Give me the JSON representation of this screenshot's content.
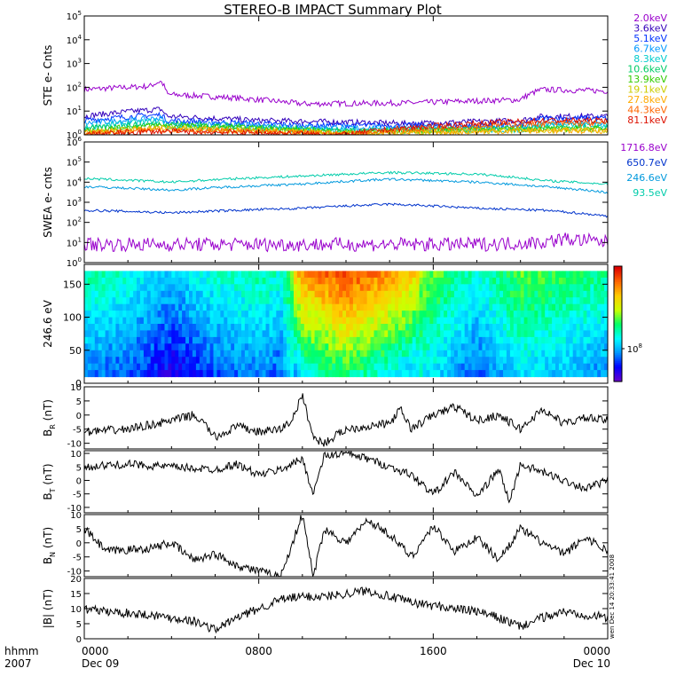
{
  "title": "STEREO-B IMPACT Summary Plot",
  "stamp": "wen Dec 14 20:33:41 2008",
  "time_axis": {
    "row_labels": [
      "hhmm",
      "2007"
    ],
    "ticks": [
      {
        "hhmm": "0000",
        "date": "Dec 09",
        "hour": 0
      },
      {
        "hhmm": "0800",
        "date": "",
        "hour": 8
      },
      {
        "hhmm": "1600",
        "date": "",
        "hour": 16
      },
      {
        "hhmm": "0000",
        "date": "Dec 10",
        "hour": 24
      }
    ]
  },
  "chart_data": [
    {
      "type": "line",
      "id": "ste",
      "ylabel": "STE e- Cnts",
      "yscale": "log",
      "ylim": [
        1,
        100000
      ],
      "yticks": [
        "10^0",
        "10^1",
        "10^2",
        "10^3",
        "10^4",
        "10^5"
      ],
      "xlim_hours": [
        0,
        24
      ],
      "legend_position": "right",
      "series": [
        {
          "name": "2.0keV",
          "color": "#9900CC",
          "values": [
            [
              0,
              80
            ],
            [
              3,
              110
            ],
            [
              3.5,
              180
            ],
            [
              3.8,
              50
            ],
            [
              6,
              40
            ],
            [
              10,
              20
            ],
            [
              15,
              22
            ],
            [
              20,
              30
            ],
            [
              21,
              80
            ],
            [
              24,
              70
            ]
          ]
        },
        {
          "name": "3.6keV",
          "color": "#3300BB",
          "values": [
            [
              0,
              6
            ],
            [
              3.5,
              12
            ],
            [
              3.8,
              6
            ],
            [
              8,
              4
            ],
            [
              15,
              3
            ],
            [
              20,
              4
            ],
            [
              21,
              6
            ],
            [
              24,
              6
            ]
          ]
        },
        {
          "name": "5.1keV",
          "color": "#0033FF",
          "values": [
            [
              0,
              4
            ],
            [
              3.5,
              7
            ],
            [
              3.8,
              4
            ],
            [
              10,
              2.5
            ],
            [
              20,
              2.5
            ],
            [
              21,
              5
            ],
            [
              24,
              5
            ]
          ]
        },
        {
          "name": "6.7keV",
          "color": "#0099FF",
          "values": [
            [
              0,
              3
            ],
            [
              3.5,
              5
            ],
            [
              3.8,
              3
            ],
            [
              12,
              2
            ],
            [
              20,
              2
            ],
            [
              21,
              3
            ],
            [
              24,
              3
            ]
          ]
        },
        {
          "name": "8.3keV",
          "color": "#00CCCC",
          "values": [
            [
              0,
              2
            ],
            [
              3.5,
              4
            ],
            [
              3.8,
              2
            ],
            [
              12,
              1.6
            ],
            [
              20,
              1.6
            ],
            [
              21,
              2.5
            ],
            [
              24,
              2.5
            ]
          ]
        },
        {
          "name": "10.6keV",
          "color": "#00CC66",
          "values": [
            [
              0,
              1.8
            ],
            [
              3.5,
              3
            ],
            [
              12,
              1.4
            ],
            [
              21,
              2
            ],
            [
              24,
              2
            ]
          ]
        },
        {
          "name": "13.9keV",
          "color": "#33CC00",
          "values": [
            [
              0,
              1.5
            ],
            [
              3.5,
              2.5
            ],
            [
              12,
              1.3
            ],
            [
              21,
              1.8
            ],
            [
              24,
              1.8
            ]
          ]
        },
        {
          "name": "19.1keV",
          "color": "#CCCC00",
          "values": [
            [
              0,
              1.3
            ],
            [
              3.5,
              2
            ],
            [
              12,
              1.2
            ],
            [
              21,
              1.6
            ],
            [
              24,
              1.6
            ]
          ]
        },
        {
          "name": "27.8keV",
          "color": "#FFAA00",
          "values": [
            [
              0,
              1.2
            ],
            [
              3.5,
              1.8
            ],
            [
              12,
              1.1
            ],
            [
              21,
              1.5
            ],
            [
              24,
              1.5
            ]
          ]
        },
        {
          "name": "44.3keV",
          "color": "#FF6600",
          "values": [
            [
              0,
              1.1
            ],
            [
              3.5,
              1.6
            ],
            [
              12,
              1.05
            ],
            [
              21,
              3
            ],
            [
              24,
              3
            ]
          ]
        },
        {
          "name": "81.1keV",
          "color": "#DD1100",
          "values": [
            [
              0,
              1.05
            ],
            [
              3.5,
              1.4
            ],
            [
              12,
              1.02
            ],
            [
              21,
              4
            ],
            [
              24,
              4
            ]
          ]
        }
      ]
    },
    {
      "type": "line",
      "id": "swea",
      "ylabel": "SWEA e- cnts",
      "yscale": "log",
      "ylim": [
        1,
        1000000
      ],
      "yticks": [
        "10^0",
        "10^1",
        "10^2",
        "10^3",
        "10^4",
        "10^5",
        "10^6"
      ],
      "xlim_hours": [
        0,
        24
      ],
      "legend_position": "right",
      "series": [
        {
          "name": "1716.8eV",
          "color": "#9900CC",
          "values": [
            [
              0,
              8
            ],
            [
              10,
              8
            ],
            [
              18,
              8
            ],
            [
              21,
              10
            ],
            [
              22,
              15
            ],
            [
              24,
              10
            ]
          ]
        },
        {
          "name": "650.7eV",
          "color": "#0033CC",
          "values": [
            [
              0,
              400
            ],
            [
              4,
              300
            ],
            [
              10,
              500
            ],
            [
              14,
              800
            ],
            [
              18,
              500
            ],
            [
              21,
              400
            ],
            [
              24,
              200
            ]
          ]
        },
        {
          "name": "246.6eV",
          "color": "#0099DD",
          "values": [
            [
              0,
              6000
            ],
            [
              4,
              4000
            ],
            [
              10,
              8000
            ],
            [
              14,
              14000
            ],
            [
              18,
              10000
            ],
            [
              21,
              6000
            ],
            [
              24,
              3000
            ]
          ]
        },
        {
          "name": "93.5eV",
          "color": "#00CCAA",
          "values": [
            [
              0,
              15000
            ],
            [
              4,
              10000
            ],
            [
              10,
              20000
            ],
            [
              14,
              30000
            ],
            [
              18,
              25000
            ],
            [
              21,
              12000
            ],
            [
              24,
              8000
            ]
          ]
        }
      ]
    },
    {
      "type": "heatmap",
      "id": "pad",
      "ylabel": "246.6 eV",
      "ylim": [
        0,
        180
      ],
      "yticks": [
        0,
        50,
        100,
        150
      ],
      "xlim_hours": [
        0,
        24
      ],
      "colorbar_label": "10^8",
      "colorbar_colors": [
        "#6600CC",
        "#0000FF",
        "#0099FF",
        "#00FFFF",
        "#00FF66",
        "#CCFF00",
        "#FFCC00",
        "#FF6600",
        "#DD0000"
      ],
      "level_profile": [
        [
          0,
          0.35
        ],
        [
          2,
          0.3
        ],
        [
          4,
          0.2
        ],
        [
          6,
          0.3
        ],
        [
          8,
          0.35
        ],
        [
          9,
          0.3
        ],
        [
          10,
          0.6
        ],
        [
          12,
          0.7
        ],
        [
          14,
          0.6
        ],
        [
          16,
          0.45
        ],
        [
          18,
          0.3
        ],
        [
          20,
          0.45
        ],
        [
          22,
          0.4
        ],
        [
          24,
          0.35
        ]
      ]
    },
    {
      "type": "line",
      "id": "br",
      "ylabel": "B_R (nT)",
      "ylim": [
        -12,
        10
      ],
      "yticks": [
        -10,
        -5,
        0,
        5,
        10
      ],
      "xlim_hours": [
        0,
        24
      ],
      "series": [
        {
          "name": "",
          "color": "#000000",
          "values": [
            [
              0,
              -6
            ],
            [
              2,
              -5
            ],
            [
              4,
              -2
            ],
            [
              5,
              0
            ],
            [
              5.5,
              -3
            ],
            [
              6,
              -8
            ],
            [
              7,
              -4
            ],
            [
              8,
              -6
            ],
            [
              9,
              -5
            ],
            [
              9.5,
              -2
            ],
            [
              10,
              7
            ],
            [
              10.5,
              -8
            ],
            [
              11,
              -10
            ],
            [
              12,
              -5
            ],
            [
              14,
              -3
            ],
            [
              14.5,
              2
            ],
            [
              15,
              -5
            ],
            [
              16,
              0
            ],
            [
              17,
              3
            ],
            [
              18,
              -2
            ],
            [
              19,
              0
            ],
            [
              20,
              -5
            ],
            [
              21,
              2
            ],
            [
              22,
              -3
            ],
            [
              23,
              -1
            ],
            [
              24,
              -2
            ]
          ]
        }
      ]
    },
    {
      "type": "line",
      "id": "bt",
      "ylabel": "B_T (nT)",
      "ylim": [
        -12,
        11
      ],
      "yticks": [
        -10,
        -5,
        0,
        5,
        10
      ],
      "xlim_hours": [
        0,
        24
      ],
      "series": [
        {
          "name": "",
          "color": "#000000",
          "values": [
            [
              0,
              5
            ],
            [
              2,
              6
            ],
            [
              4,
              5
            ],
            [
              6,
              4
            ],
            [
              7,
              6
            ],
            [
              8,
              2
            ],
            [
              9,
              4
            ],
            [
              10,
              8
            ],
            [
              10.5,
              -5
            ],
            [
              11,
              9
            ],
            [
              12,
              10
            ],
            [
              13,
              8
            ],
            [
              14,
              5
            ],
            [
              15,
              2
            ],
            [
              16,
              -5
            ],
            [
              17,
              3
            ],
            [
              18,
              -6
            ],
            [
              19,
              4
            ],
            [
              19.5,
              -8
            ],
            [
              20,
              6
            ],
            [
              21,
              3
            ],
            [
              22,
              0
            ],
            [
              23,
              -3
            ],
            [
              24,
              0
            ]
          ]
        }
      ]
    },
    {
      "type": "line",
      "id": "bn",
      "ylabel": "B_N (nT)",
      "ylim": [
        -12,
        10
      ],
      "yticks": [
        -10,
        -5,
        0,
        5,
        10
      ],
      "xlim_hours": [
        0,
        24
      ],
      "series": [
        {
          "name": "",
          "color": "#000000",
          "values": [
            [
              0,
              5
            ],
            [
              1,
              -3
            ],
            [
              3,
              -2
            ],
            [
              4,
              0
            ],
            [
              5,
              -6
            ],
            [
              6,
              -4
            ],
            [
              7,
              -8
            ],
            [
              8,
              -10
            ],
            [
              9,
              -12
            ],
            [
              10,
              10
            ],
            [
              10.5,
              -12
            ],
            [
              11,
              5
            ],
            [
              12,
              0
            ],
            [
              13,
              8
            ],
            [
              14,
              3
            ],
            [
              15,
              -5
            ],
            [
              16,
              6
            ],
            [
              17,
              -3
            ],
            [
              18,
              2
            ],
            [
              19,
              -6
            ],
            [
              20,
              5
            ],
            [
              21,
              0
            ],
            [
              22,
              -4
            ],
            [
              23,
              2
            ],
            [
              24,
              -3
            ]
          ]
        }
      ]
    },
    {
      "type": "line",
      "id": "bmag",
      "ylabel": "|B| (nT)",
      "ylim": [
        0,
        20
      ],
      "yticks": [
        0,
        5,
        10,
        15,
        20
      ],
      "xlim_hours": [
        0,
        24
      ],
      "series": [
        {
          "name": "",
          "color": "#000000",
          "values": [
            [
              0,
              10
            ],
            [
              1,
              9
            ],
            [
              3,
              8
            ],
            [
              5,
              6
            ],
            [
              6,
              3
            ],
            [
              7,
              7
            ],
            [
              8,
              10
            ],
            [
              9,
              13
            ],
            [
              10,
              14
            ],
            [
              11,
              14
            ],
            [
              12,
              15
            ],
            [
              13,
              16
            ],
            [
              14,
              14
            ],
            [
              15,
              12
            ],
            [
              16,
              11
            ],
            [
              17,
              10
            ],
            [
              18,
              9
            ],
            [
              19,
              7
            ],
            [
              20,
              4
            ],
            [
              21,
              7
            ],
            [
              22,
              9
            ],
            [
              23,
              8
            ],
            [
              24,
              7
            ]
          ]
        }
      ]
    }
  ]
}
